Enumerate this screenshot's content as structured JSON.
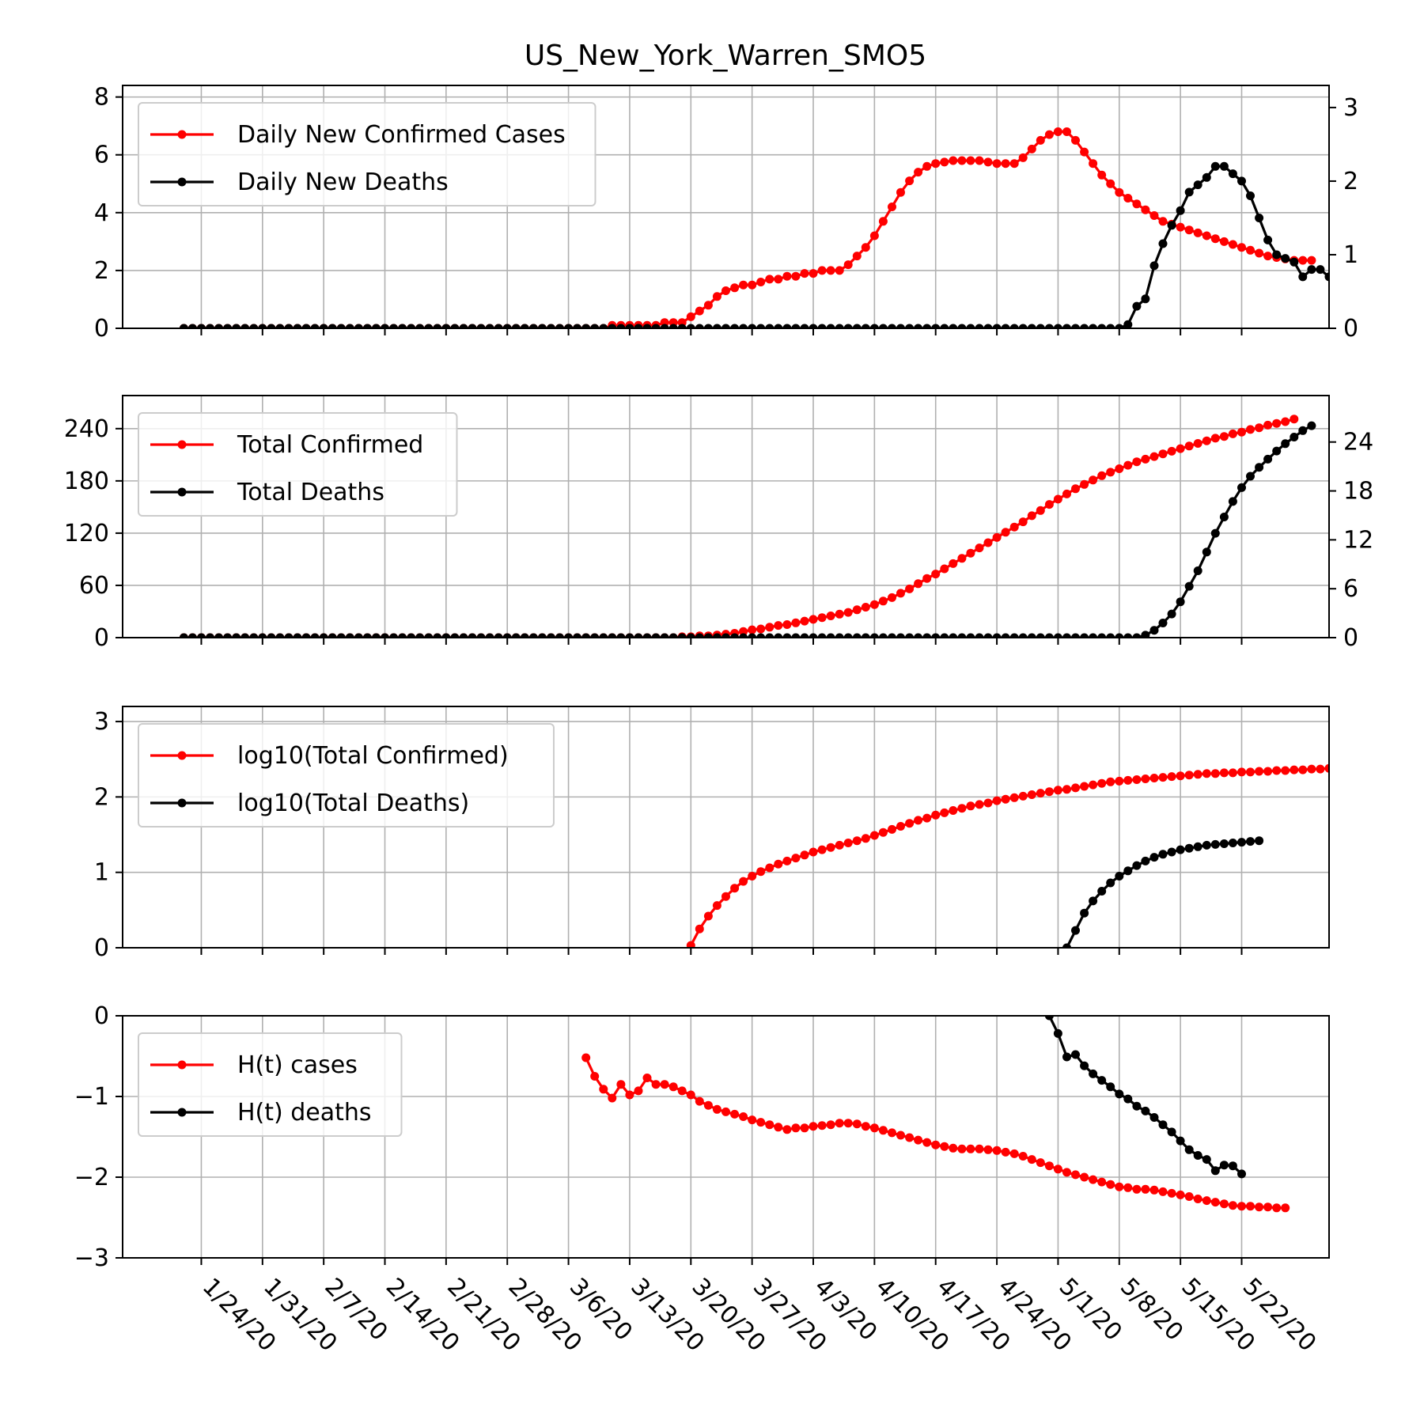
{
  "chart_data": {
    "title": "US_New_York_Warren_SMO5",
    "x_tick_labels": [
      "1/24/20",
      "1/31/20",
      "2/7/20",
      "2/14/20",
      "2/21/20",
      "2/28/20",
      "3/6/20",
      "3/13/20",
      "3/20/20",
      "3/27/20",
      "4/3/20",
      "4/10/20",
      "4/17/20",
      "4/24/20",
      "5/1/20",
      "5/8/20",
      "5/15/20",
      "5/22/20"
    ],
    "x_range": [
      "1/15/20",
      "6/1/20"
    ],
    "colors": {
      "cases": "#ff0000",
      "deaths": "#000000",
      "grid": "#b0b0b0"
    },
    "panels": [
      {
        "type": "line",
        "ylim": [
          0,
          8.4
        ],
        "y_ticks": [
          0,
          2,
          4,
          6,
          8
        ],
        "y2lim": [
          0,
          3.3
        ],
        "y2_ticks": [
          0,
          1,
          2,
          3
        ],
        "legend_position": "upper-left",
        "series": [
          {
            "name": "Daily New Confirmed Cases",
            "axis": "left",
            "color": "#ff0000",
            "start": "1/22/20",
            "values": [
              0,
              0,
              0,
              0,
              0,
              0,
              0,
              0,
              0,
              0,
              0,
              0,
              0,
              0,
              0,
              0,
              0,
              0,
              0,
              0,
              0,
              0,
              0,
              0,
              0,
              0,
              0,
              0,
              0,
              0,
              0,
              0,
              0,
              0,
              0,
              0,
              0,
              0,
              0,
              0,
              0,
              0,
              0,
              0,
              0,
              0,
              0,
              0,
              0,
              0.1,
              0.1,
              0.1,
              0.1,
              0.1,
              0.1,
              0.2,
              0.2,
              0.2,
              0.4,
              0.6,
              0.8,
              1.1,
              1.3,
              1.4,
              1.5,
              1.5,
              1.6,
              1.7,
              1.7,
              1.8,
              1.8,
              1.9,
              1.9,
              2.0,
              2.0,
              2.0,
              2.2,
              2.5,
              2.8,
              3.2,
              3.7,
              4.2,
              4.7,
              5.1,
              5.4,
              5.6,
              5.7,
              5.75,
              5.8,
              5.8,
              5.8,
              5.8,
              5.75,
              5.7,
              5.7,
              5.7,
              5.9,
              6.2,
              6.5,
              6.7,
              6.8,
              6.8,
              6.5,
              6.1,
              5.7,
              5.3,
              5.0,
              4.7,
              4.5,
              4.3,
              4.1,
              3.9,
              3.7,
              3.6,
              3.5,
              3.4,
              3.3,
              3.2,
              3.1,
              3.0,
              2.9,
              2.8,
              2.7,
              2.6,
              2.5,
              2.45,
              2.4,
              2.35,
              2.35,
              2.35
            ]
          },
          {
            "name": "Daily New Deaths",
            "axis": "right",
            "color": "#000000",
            "start": "1/22/20",
            "values": [
              0,
              0,
              0,
              0,
              0,
              0,
              0,
              0,
              0,
              0,
              0,
              0,
              0,
              0,
              0,
              0,
              0,
              0,
              0,
              0,
              0,
              0,
              0,
              0,
              0,
              0,
              0,
              0,
              0,
              0,
              0,
              0,
              0,
              0,
              0,
              0,
              0,
              0,
              0,
              0,
              0,
              0,
              0,
              0,
              0,
              0,
              0,
              0,
              0,
              0,
              0,
              0,
              0,
              0,
              0,
              0,
              0,
              0,
              0,
              0,
              0,
              0,
              0,
              0,
              0,
              0,
              0,
              0,
              0,
              0,
              0,
              0,
              0,
              0,
              0,
              0,
              0,
              0,
              0,
              0,
              0,
              0,
              0,
              0,
              0,
              0,
              0,
              0,
              0,
              0,
              0,
              0,
              0,
              0,
              0,
              0,
              0,
              0,
              0,
              0,
              0,
              0,
              0,
              0,
              0,
              0,
              0,
              0,
              0.05,
              0.3,
              0.4,
              0.85,
              1.15,
              1.4,
              1.6,
              1.85,
              1.95,
              2.05,
              2.2,
              2.2,
              2.1,
              2.0,
              1.8,
              1.5,
              1.2,
              1.0,
              0.95,
              0.9,
              0.7,
              0.8,
              0.8,
              0.7
            ]
          }
        ]
      },
      {
        "type": "line",
        "ylim": [
          0,
          278
        ],
        "y_ticks": [
          0,
          60,
          120,
          180,
          240
        ],
        "y2lim": [
          0,
          29.7
        ],
        "y2_ticks": [
          0,
          6,
          12,
          18,
          24
        ],
        "legend_position": "upper-left",
        "series": [
          {
            "name": "Total Confirmed",
            "axis": "left",
            "color": "#ff0000",
            "start": "1/22/20",
            "values": [
              0,
              0,
              0,
              0,
              0,
              0,
              0,
              0,
              0,
              0,
              0,
              0,
              0,
              0,
              0,
              0,
              0,
              0,
              0,
              0,
              0,
              0,
              0,
              0,
              0,
              0,
              0,
              0,
              0,
              0,
              0,
              0,
              0,
              0,
              0,
              0,
              0,
              0,
              0,
              0,
              0,
              0,
              0,
              0,
              0,
              0,
              0,
              0,
              0,
              0,
              0,
              0,
              0,
              0,
              0,
              0,
              0,
              1,
              1,
              2,
              2,
              3,
              4,
              5,
              7,
              9,
              10,
              12,
              14,
              15,
              17,
              19,
              21,
              23,
              25,
              27,
              29,
              32,
              35,
              38,
              42,
              46,
              51,
              56,
              62,
              68,
              73,
              79,
              85,
              91,
              97,
              103,
              109,
              115,
              121,
              127,
              133,
              140,
              146,
              153,
              159,
              165,
              171,
              176,
              181,
              186,
              190,
              194,
              198,
              202,
              205,
              208,
              211,
              214,
              217,
              220,
              223,
              226,
              229,
              231,
              234,
              236,
              239,
              241,
              244,
              246,
              248,
              251
            ]
          },
          {
            "name": "Total Deaths",
            "axis": "right",
            "color": "#000000",
            "start": "1/22/20",
            "values": [
              0,
              0,
              0,
              0,
              0,
              0,
              0,
              0,
              0,
              0,
              0,
              0,
              0,
              0,
              0,
              0,
              0,
              0,
              0,
              0,
              0,
              0,
              0,
              0,
              0,
              0,
              0,
              0,
              0,
              0,
              0,
              0,
              0,
              0,
              0,
              0,
              0,
              0,
              0,
              0,
              0,
              0,
              0,
              0,
              0,
              0,
              0,
              0,
              0,
              0,
              0,
              0,
              0,
              0,
              0,
              0,
              0,
              0,
              0,
              0,
              0,
              0,
              0,
              0,
              0,
              0,
              0,
              0,
              0,
              0,
              0,
              0,
              0,
              0,
              0,
              0,
              0,
              0,
              0,
              0,
              0,
              0,
              0,
              0,
              0,
              0,
              0,
              0,
              0,
              0,
              0,
              0,
              0,
              0,
              0,
              0,
              0,
              0,
              0,
              0,
              0,
              0,
              0,
              0,
              0,
              0,
              0,
              0,
              0,
              0,
              0.3,
              0.9,
              1.8,
              2.9,
              4.4,
              6.3,
              8.2,
              10.5,
              12.8,
              14.8,
              16.7,
              18.4,
              19.8,
              20.9,
              21.9,
              22.9,
              23.8,
              24.6,
              25.4,
              26.0
            ]
          }
        ]
      },
      {
        "type": "line",
        "ylim": [
          0,
          3.2
        ],
        "y_ticks": [
          0,
          1,
          2,
          3
        ],
        "legend_position": "upper-left",
        "series": [
          {
            "name": "log10(Total Confirmed)",
            "color": "#ff0000",
            "start": "3/20/20",
            "values": [
              0.03,
              0.25,
              0.42,
              0.56,
              0.68,
              0.79,
              0.88,
              0.95,
              1.01,
              1.06,
              1.11,
              1.15,
              1.19,
              1.23,
              1.27,
              1.3,
              1.33,
              1.36,
              1.39,
              1.42,
              1.45,
              1.49,
              1.53,
              1.57,
              1.61,
              1.65,
              1.69,
              1.72,
              1.76,
              1.79,
              1.82,
              1.85,
              1.88,
              1.9,
              1.92,
              1.95,
              1.97,
              1.99,
              2.01,
              2.03,
              2.05,
              2.07,
              2.09,
              2.1,
              2.12,
              2.14,
              2.16,
              2.18,
              2.2,
              2.21,
              2.22,
              2.23,
              2.24,
              2.25,
              2.26,
              2.27,
              2.28,
              2.29,
              2.3,
              2.31,
              2.31,
              2.32,
              2.32,
              2.33,
              2.33,
              2.34,
              2.34,
              2.35,
              2.35,
              2.36,
              2.36,
              2.37,
              2.37,
              2.38,
              2.38,
              2.39,
              2.39,
              2.4
            ]
          },
          {
            "name": "log10(Total Deaths)",
            "color": "#000000",
            "start": "5/2/20",
            "values": [
              0.0,
              0.23,
              0.46,
              0.62,
              0.75,
              0.86,
              0.95,
              1.02,
              1.09,
              1.15,
              1.2,
              1.24,
              1.27,
              1.3,
              1.32,
              1.34,
              1.36,
              1.37,
              1.38,
              1.39,
              1.4,
              1.41,
              1.42
            ]
          }
        ]
      },
      {
        "type": "line",
        "ylim": [
          -3,
          0
        ],
        "y_ticks": [
          0,
          -1,
          -2,
          -3
        ],
        "y_tick_labels": [
          "0",
          "−1",
          "−2",
          "−3"
        ],
        "legend_position": "upper-left",
        "series": [
          {
            "name": "H(t) cases",
            "color": "#ff0000",
            "start": "3/8/20",
            "values": [
              -0.52,
              -0.75,
              -0.91,
              -1.02,
              -0.85,
              -0.98,
              -0.93,
              -0.77,
              -0.85,
              -0.85,
              -0.88,
              -0.93,
              -0.98,
              -1.06,
              -1.11,
              -1.16,
              -1.19,
              -1.22,
              -1.25,
              -1.29,
              -1.32,
              -1.35,
              -1.38,
              -1.41,
              -1.39,
              -1.39,
              -1.37,
              -1.36,
              -1.35,
              -1.33,
              -1.33,
              -1.34,
              -1.37,
              -1.39,
              -1.42,
              -1.45,
              -1.48,
              -1.51,
              -1.54,
              -1.57,
              -1.6,
              -1.62,
              -1.64,
              -1.65,
              -1.65,
              -1.65,
              -1.66,
              -1.67,
              -1.69,
              -1.71,
              -1.74,
              -1.78,
              -1.82,
              -1.86,
              -1.9,
              -1.94,
              -1.97,
              -2.0,
              -2.03,
              -2.06,
              -2.09,
              -2.12,
              -2.13,
              -2.15,
              -2.15,
              -2.16,
              -2.18,
              -2.2,
              -2.22,
              -2.24,
              -2.27,
              -2.29,
              -2.31,
              -2.33,
              -2.35,
              -2.36,
              -2.36,
              -2.37,
              -2.37,
              -2.38,
              -2.38
            ]
          },
          {
            "name": "H(t) deaths",
            "color": "#000000",
            "start": "4/30/20",
            "values": [
              0.0,
              -0.22,
              -0.51,
              -0.48,
              -0.62,
              -0.72,
              -0.8,
              -0.88,
              -0.97,
              -1.03,
              -1.12,
              -1.18,
              -1.26,
              -1.35,
              -1.44,
              -1.55,
              -1.66,
              -1.73,
              -1.78,
              -1.92,
              -1.85,
              -1.86,
              -1.96
            ]
          }
        ]
      }
    ]
  }
}
